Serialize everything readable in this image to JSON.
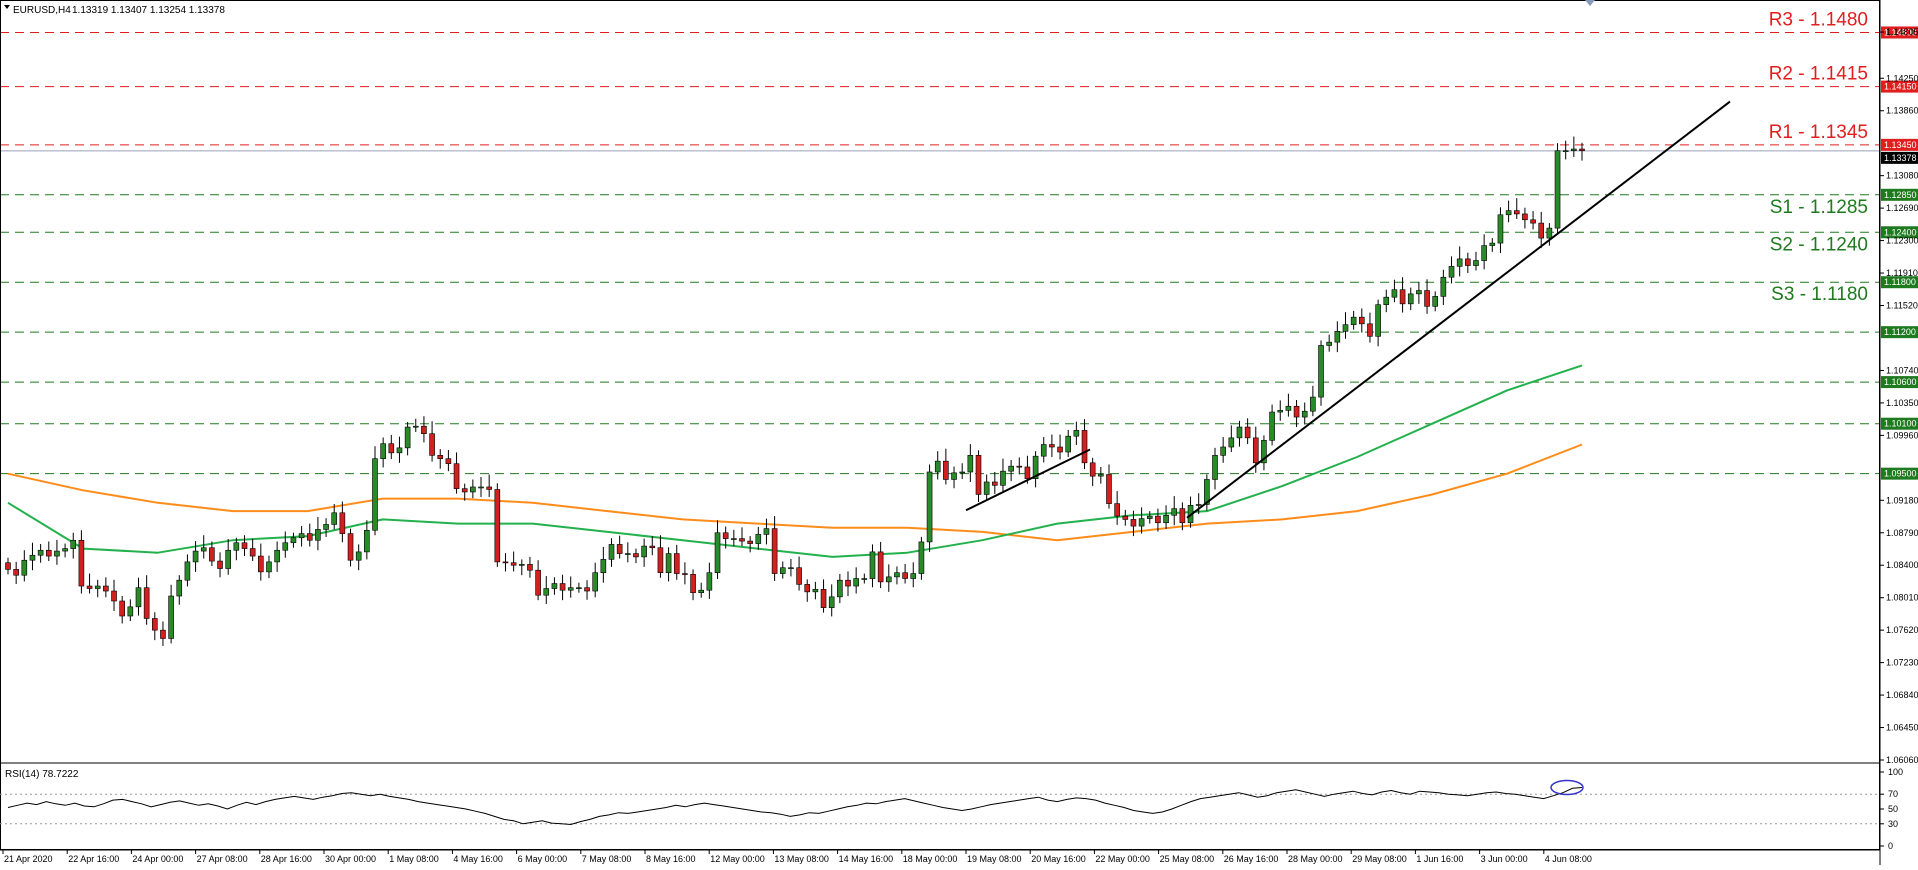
{
  "header": {
    "symbol": "EURUSD,H4",
    "ohlc": "1.13319 1.13407 1.13254 1.13378"
  },
  "rsi_label": "RSI(14) 78.7222",
  "colors": {
    "background": "#ffffff",
    "bull": "#2a8a2a",
    "bear": "#d02020",
    "resistance": "#e21d1d",
    "support": "#1e7a1e",
    "ma_fast": "#22b14c",
    "ma_slow": "#ff8c1a",
    "trend": "#000000",
    "rsi_line": "#000000",
    "rsi_circle": "#3333cc"
  },
  "chart_data": [
    {
      "type": "candlestick",
      "title": "EURUSD,H4",
      "price_axis_ticks": [
        "1.14805",
        "1.14250",
        "1.13860",
        "1.13080",
        "1.12690",
        "1.12300",
        "1.11910",
        "1.11520",
        "1.10740",
        "1.10350",
        "1.09960",
        "1.09180",
        "1.08790",
        "1.08400",
        "1.08010",
        "1.07620",
        "1.07230",
        "1.06840",
        "1.06450",
        "1.06060"
      ],
      "ylim": [
        1.0606,
        1.1495
      ],
      "current_price": "1.13378",
      "x_tick_labels": [
        "21 Apr 2020",
        "22 Apr 16:00",
        "24 Apr 00:00",
        "27 Apr 08:00",
        "28 Apr 16:00",
        "30 Apr 00:00",
        "1 May 08:00",
        "4 May 16:00",
        "6 May 00:00",
        "7 May 08:00",
        "8 May 16:00",
        "12 May 00:00",
        "13 May 08:00",
        "14 May 16:00",
        "18 May 00:00",
        "19 May 08:00",
        "20 May 16:00",
        "22 May 00:00",
        "25 May 08:00",
        "26 May 16:00",
        "28 May 00:00",
        "29 May 08:00",
        "1 Jun 16:00",
        "3 Jun 00:00",
        "4 Jun 08:00"
      ],
      "levels": [
        {
          "kind": "resistance",
          "label": "R3 - 1.1480",
          "tag": "1.14800",
          "value": 1.148
        },
        {
          "kind": "resistance",
          "label": "R2 - 1.1415",
          "tag": "1.14150",
          "value": 1.1415
        },
        {
          "kind": "resistance",
          "label": "R1 - 1.1345",
          "tag": "1.13450",
          "value": 1.1345
        },
        {
          "kind": "support",
          "label": "S1 - 1.1285",
          "tag": "1.12850",
          "value": 1.1285
        },
        {
          "kind": "support",
          "label": "S2 - 1.1240",
          "tag": "1.12400",
          "value": 1.124
        },
        {
          "kind": "support",
          "label": "S3 - 1.1180",
          "tag": "1.11800",
          "value": 1.118
        },
        {
          "kind": "support",
          "label": "",
          "tag": "1.11200",
          "value": 1.112
        },
        {
          "kind": "support",
          "label": "",
          "tag": "1.10600",
          "value": 1.106
        },
        {
          "kind": "support",
          "label": "",
          "tag": "1.10100",
          "value": 1.101
        },
        {
          "kind": "support",
          "label": "",
          "tag": "1.09500",
          "value": 1.095
        }
      ],
      "candles_close": [
        1.0835,
        1.0828,
        1.0846,
        1.0852,
        1.0858,
        1.0851,
        1.0857,
        1.086,
        1.087,
        1.0815,
        1.0812,
        1.0815,
        1.0809,
        1.0797,
        1.0779,
        1.079,
        1.0813,
        1.0776,
        1.0762,
        1.0752,
        1.0803,
        1.0822,
        1.0844,
        1.0857,
        1.0861,
        1.0845,
        1.0836,
        1.0858,
        1.0867,
        1.086,
        1.0851,
        1.0832,
        1.0844,
        1.0858,
        1.0867,
        1.0873,
        1.0878,
        1.087,
        1.0883,
        1.0889,
        1.0903,
        1.0878,
        1.0846,
        1.0856,
        1.0882,
        1.0968,
        1.0986,
        1.0975,
        1.0981,
        1.1006,
        1.1007,
        1.0998,
        1.0972,
        1.0968,
        1.0962,
        1.0932,
        1.0928,
        1.0934,
        1.0934,
        1.0931,
        1.0844,
        1.0843,
        1.084,
        1.0841,
        1.0834,
        1.0804,
        1.0812,
        1.0818,
        1.081,
        1.0813,
        1.0813,
        1.0809,
        1.0831,
        1.0847,
        1.0865,
        1.0854,
        1.0854,
        1.085,
        1.0863,
        1.0861,
        1.0831,
        1.0854,
        1.083,
        1.0829,
        1.0807,
        1.081,
        1.0831,
        1.0879,
        1.0872,
        1.0872,
        1.0869,
        1.0866,
        1.0877,
        1.0884,
        1.083,
        1.0837,
        1.0837,
        1.0817,
        1.0808,
        1.0811,
        1.0789,
        1.0802,
        1.0822,
        1.0815,
        1.0824,
        1.0824,
        1.0856,
        1.082,
        1.0826,
        1.0831,
        1.0824,
        1.083,
        1.0868,
        1.0952,
        1.0965,
        1.0943,
        1.0951,
        1.0952,
        1.0972,
        1.0925,
        1.094,
        1.0936,
        1.0953,
        1.0959,
        1.0958,
        1.0944,
        1.0971,
        1.0985,
        1.0982,
        1.0976,
        1.0995,
        1.1002,
        1.0963,
        1.0947,
        1.0949,
        1.0914,
        1.0899,
        1.0895,
        1.0887,
        1.0896,
        1.0899,
        1.0891,
        1.09,
        1.0908,
        1.0891,
        1.0912,
        1.0913,
        1.0943,
        1.0972,
        1.0982,
        1.0993,
        1.1006,
        1.0993,
        1.0963,
        1.099,
        1.1024,
        1.1026,
        1.1031,
        1.1018,
        1.1025,
        1.1042,
        1.1104,
        1.1108,
        1.1121,
        1.1129,
        1.1138,
        1.113,
        1.1115,
        1.1153,
        1.1162,
        1.1171,
        1.1154,
        1.1166,
        1.117,
        1.1151,
        1.1163,
        1.1186,
        1.1199,
        1.1208,
        1.12,
        1.1206,
        1.1224,
        1.1227,
        1.1261,
        1.1266,
        1.1262,
        1.1255,
        1.1251,
        1.1233,
        1.1245,
        1.1338,
        1.1338,
        1.134,
        1.1338
      ],
      "ma_fast_level": [
        1.0915,
        1.086,
        1.0855,
        1.087,
        1.0875,
        1.0895,
        1.089,
        1.089,
        1.088,
        1.087,
        1.086,
        1.085,
        1.0855,
        1.087,
        1.089,
        1.09,
        1.0905,
        1.0935,
        1.097,
        1.101,
        1.105,
        1.108
      ],
      "ma_slow_level": [
        1.095,
        1.093,
        1.0915,
        1.0905,
        1.0905,
        1.092,
        1.092,
        1.0915,
        1.0905,
        1.0895,
        1.089,
        1.0885,
        1.0885,
        1.088,
        1.087,
        1.088,
        1.089,
        1.0895,
        1.0905,
        1.0925,
        1.095,
        1.0985
      ],
      "trendlines": [
        {
          "from": [
            1.0906,
            1.0906
          ],
          "to": [
            1.0979,
            1.0979
          ]
        },
        {
          "from": [
            1.0897,
            1.0897
          ],
          "to": [
            1.1397,
            1.1397
          ]
        }
      ]
    },
    {
      "type": "line",
      "title": "RSI(14) 78.7222",
      "ylim": [
        0,
        100
      ],
      "levels": [
        70,
        30
      ],
      "tick_labels": [
        "100",
        "70",
        "50",
        "30",
        "0"
      ],
      "values": [
        52,
        55,
        58,
        56,
        60,
        57,
        55,
        58,
        54,
        53,
        57,
        62,
        63,
        60,
        57,
        53,
        56,
        59,
        61,
        58,
        55,
        57,
        54,
        50,
        55,
        59,
        56,
        60,
        63,
        65,
        67,
        65,
        63,
        66,
        68,
        71,
        72,
        70,
        68,
        70,
        67,
        65,
        63,
        60,
        58,
        56,
        54,
        52,
        50,
        47,
        44,
        40,
        36,
        34,
        30,
        32,
        34,
        31,
        30,
        29,
        33,
        36,
        40,
        42,
        45,
        44,
        46,
        48,
        50,
        52,
        55,
        53,
        56,
        58,
        56,
        54,
        52,
        50,
        48,
        46,
        45,
        43,
        40,
        42,
        45,
        44,
        47,
        50,
        53,
        55,
        58,
        57,
        60,
        62,
        64,
        61,
        58,
        55,
        52,
        50,
        48,
        50,
        53,
        56,
        58,
        60,
        62,
        64,
        66,
        62,
        60,
        63,
        65,
        64,
        62,
        58,
        55,
        52,
        48,
        46,
        44,
        46,
        50,
        55,
        60,
        64,
        66,
        68,
        70,
        72,
        69,
        66,
        68,
        72,
        74,
        76,
        73,
        70,
        67,
        70,
        72,
        74,
        71,
        69,
        73,
        75,
        72,
        70,
        74,
        73,
        72,
        70,
        69,
        68,
        70,
        72,
        73,
        71,
        70,
        68,
        66,
        64,
        68,
        72,
        78,
        79
      ]
    }
  ]
}
